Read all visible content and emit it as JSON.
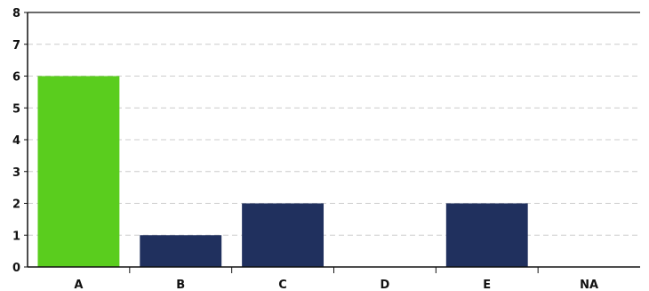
{
  "chart_data": {
    "type": "bar",
    "categories": [
      "A",
      "B",
      "C",
      "D",
      "E",
      "NA"
    ],
    "values": [
      6,
      1,
      2,
      0,
      2,
      0
    ],
    "title": "",
    "xlabel": "",
    "ylabel": "",
    "ylim": [
      0,
      8
    ],
    "yticks": [
      "0",
      "1",
      "2",
      "3",
      "4",
      "5",
      "6",
      "7",
      "8"
    ],
    "grid": true,
    "legend": "none",
    "colors": {
      "highlight": "#5acd1e",
      "bar": "#20305e",
      "grid": "#cccccc",
      "axis": "#111111"
    },
    "highlight_index": 0
  }
}
